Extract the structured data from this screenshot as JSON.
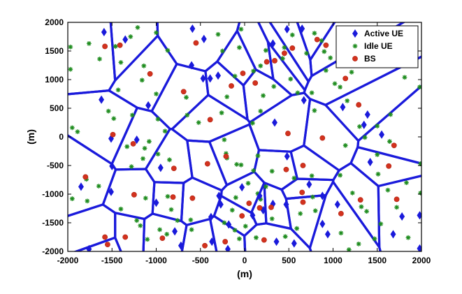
{
  "chart_data": {
    "type": "scatter",
    "title": "",
    "xlabel": "(m)",
    "ylabel": "(m)",
    "xlim": [
      -2000,
      2000
    ],
    "ylim": [
      -2000,
      2000
    ],
    "xticks": [
      -2000,
      -1500,
      -1000,
      -500,
      0,
      500,
      1000,
      1500,
      2000
    ],
    "yticks": [
      -2000,
      -1500,
      -1000,
      -500,
      0,
      500,
      1000,
      1500,
      2000
    ],
    "grid": false,
    "legend_position": "top-right",
    "colors": {
      "cell_edges": "#1a1adb",
      "active_ue": "#1a1adb",
      "idle_ue": "#1e8c1e",
      "bs": "#d2321e"
    },
    "series": [
      {
        "name": "Active UE",
        "marker": "diamond",
        "points": [
          [
            -1590,
            1830
          ],
          [
            -1350,
            1700
          ],
          [
            -600,
            1250
          ],
          [
            -470,
            1020
          ],
          [
            -390,
            1020
          ],
          [
            -300,
            1070
          ],
          [
            -1620,
            650
          ],
          [
            -1090,
            550
          ],
          [
            -1510,
            -30
          ],
          [
            -1220,
            -50
          ],
          [
            -1500,
            -510
          ],
          [
            -1850,
            -870
          ],
          [
            -1510,
            -960
          ],
          [
            -950,
            -540
          ],
          [
            -790,
            -1650
          ],
          [
            -1000,
            -1150
          ],
          [
            -720,
            -1900
          ],
          [
            -1760,
            -1960
          ],
          [
            -290,
            -1030
          ],
          [
            -270,
            -1180
          ],
          [
            -380,
            -1400
          ],
          [
            -180,
            -1530
          ],
          [
            -370,
            -1830
          ],
          [
            -190,
            -1960
          ],
          [
            -30,
            -880
          ],
          [
            90,
            -1370
          ],
          [
            170,
            -1030
          ],
          [
            210,
            -1280
          ],
          [
            320,
            -1170
          ],
          [
            470,
            -1180
          ],
          [
            360,
            -1830
          ],
          [
            480,
            -340
          ],
          [
            730,
            -830
          ],
          [
            880,
            -1030
          ],
          [
            1050,
            -1180
          ],
          [
            880,
            -1520
          ],
          [
            940,
            -1700
          ],
          [
            560,
            -1860
          ],
          [
            340,
            250
          ],
          [
            670,
            640
          ],
          [
            1110,
            520
          ],
          [
            1350,
            210
          ],
          [
            1390,
            390
          ],
          [
            1550,
            40
          ],
          [
            1420,
            -440
          ],
          [
            1680,
            -1700
          ],
          [
            1780,
            -1390
          ],
          [
            1980,
            -1370
          ],
          [
            1980,
            -1950
          ],
          [
            320,
            1630
          ],
          [
            650,
            1890
          ],
          [
            480,
            1880
          ],
          [
            1150,
            1710
          ],
          [
            1110,
            1430
          ],
          [
            1320,
            1560
          ],
          [
            -590,
            1890
          ],
          [
            -460,
            1710
          ]
        ]
      },
      {
        "name": "Idle UE",
        "marker": "asterisk",
        "points": [
          [
            -1970,
            1570
          ],
          [
            -1970,
            1180
          ],
          [
            -1760,
            1630
          ],
          [
            -1640,
            1360
          ],
          [
            -1400,
            1300
          ],
          [
            -1210,
            1910
          ],
          [
            -1000,
            1820
          ],
          [
            -870,
            1510
          ],
          [
            -1140,
            1240
          ],
          [
            -1460,
            1580
          ],
          [
            -1290,
            1750
          ],
          [
            -1160,
            990
          ],
          [
            -1430,
            820
          ],
          [
            -1540,
            450
          ],
          [
            -1480,
            320
          ],
          [
            -1270,
            380
          ],
          [
            -1000,
            750
          ],
          [
            -980,
            310
          ],
          [
            -900,
            100
          ],
          [
            -660,
            690
          ],
          [
            -650,
            380
          ],
          [
            -520,
            250
          ],
          [
            -1950,
            160
          ],
          [
            -1890,
            90
          ],
          [
            -1330,
            -170
          ],
          [
            -1080,
            -80
          ],
          [
            -1150,
            -380
          ],
          [
            -850,
            -400
          ],
          [
            -1280,
            -520
          ],
          [
            -1650,
            -860
          ],
          [
            -1780,
            -1120
          ],
          [
            -1950,
            -1080
          ],
          [
            -1400,
            -1260
          ],
          [
            -1220,
            -1460
          ],
          [
            -1180,
            -1550
          ],
          [
            -960,
            -1620
          ],
          [
            -880,
            -1700
          ],
          [
            -760,
            -1460
          ],
          [
            -610,
            -1450
          ],
          [
            -600,
            -1620
          ],
          [
            -830,
            -1270
          ],
          [
            -870,
            -1040
          ],
          [
            -1120,
            -1070
          ],
          [
            -1100,
            -1790
          ],
          [
            -200,
            -370
          ],
          [
            -100,
            -1060
          ],
          [
            -140,
            -1280
          ],
          [
            -230,
            -1500
          ],
          [
            -110,
            -1630
          ],
          [
            -60,
            -1780
          ],
          [
            10,
            -1560
          ],
          [
            130,
            -1760
          ],
          [
            180,
            -1090
          ],
          [
            150,
            -990
          ],
          [
            -90,
            -480
          ],
          [
            -210,
            -290
          ],
          [
            -230,
            -50
          ],
          [
            -40,
            -490
          ],
          [
            40,
            -810
          ],
          [
            240,
            -870
          ],
          [
            90,
            240
          ],
          [
            180,
            450
          ],
          [
            210,
            720
          ],
          [
            330,
            880
          ],
          [
            520,
            1010
          ],
          [
            600,
            770
          ],
          [
            760,
            770
          ],
          [
            790,
            460
          ],
          [
            1020,
            930
          ],
          [
            1080,
            870
          ],
          [
            1160,
            630
          ],
          [
            1210,
            1130
          ],
          [
            1200,
            1430
          ],
          [
            1100,
            1360
          ],
          [
            970,
            1380
          ],
          [
            920,
            1160
          ],
          [
            900,
            1490
          ],
          [
            700,
            1460
          ],
          [
            540,
            1780
          ],
          [
            450,
            1560
          ],
          [
            240,
            1510
          ],
          [
            180,
            1240
          ],
          [
            100,
            1150
          ],
          [
            -250,
            1500
          ],
          [
            -300,
            1790
          ],
          [
            -110,
            1060
          ],
          [
            -200,
            700
          ],
          [
            -260,
            420
          ],
          [
            150,
            -330
          ],
          [
            100,
            -590
          ],
          [
            310,
            -600
          ],
          [
            560,
            -720
          ],
          [
            760,
            -680
          ],
          [
            1080,
            -670
          ],
          [
            1140,
            -150
          ],
          [
            1360,
            -10
          ],
          [
            1500,
            -310
          ],
          [
            1510,
            -650
          ],
          [
            1220,
            -980
          ],
          [
            1320,
            -1220
          ],
          [
            1380,
            -1300
          ],
          [
            1540,
            -1520
          ],
          [
            1720,
            -1230
          ],
          [
            1620,
            -930
          ],
          [
            1830,
            -800
          ],
          [
            1990,
            -470
          ],
          [
            1990,
            -980
          ],
          [
            1850,
            -1760
          ],
          [
            1470,
            -1780
          ],
          [
            1290,
            -1870
          ],
          [
            1180,
            -1970
          ],
          [
            1090,
            -1680
          ],
          [
            800,
            -1290
          ],
          [
            770,
            -1050
          ],
          [
            630,
            -1340
          ],
          [
            590,
            -1600
          ],
          [
            460,
            -1740
          ],
          [
            310,
            -1430
          ],
          [
            1300,
            180
          ],
          [
            1500,
            190
          ],
          [
            1650,
            390
          ],
          [
            1810,
            1040
          ],
          [
            1980,
            870
          ],
          [
            1750,
            1540
          ],
          [
            1680,
            1280
          ],
          [
            1430,
            1460
          ],
          [
            1410,
            1710
          ],
          [
            1190,
            1850
          ],
          [
            1060,
            1790
          ],
          [
            870,
            1680
          ],
          [
            790,
            1810
          ],
          [
            430,
            1370
          ],
          [
            -1130,
            -200
          ],
          [
            -980,
            -300
          ],
          [
            -1790,
            -740
          ],
          [
            -60,
            1560
          ],
          [
            -40,
            1880
          ],
          [
            1640,
            -80
          ]
        ]
      },
      {
        "name": "BS",
        "marker": "circle",
        "points": [
          [
            -1580,
            1580
          ],
          [
            -1410,
            1600
          ],
          [
            -550,
            1640
          ],
          [
            -1070,
            1100
          ],
          [
            -690,
            790
          ],
          [
            -1490,
            40
          ],
          [
            -1260,
            -120
          ],
          [
            -1800,
            -700
          ],
          [
            -1250,
            -1010
          ],
          [
            -1580,
            -1750
          ],
          [
            -1350,
            -1750
          ],
          [
            -1550,
            -1880
          ],
          [
            -800,
            -550
          ],
          [
            -810,
            -1050
          ],
          [
            -930,
            -1770
          ],
          [
            -450,
            -1900
          ],
          [
            -420,
            -470
          ],
          [
            -590,
            -1070
          ],
          [
            -390,
            300
          ],
          [
            -210,
            -340
          ],
          [
            -220,
            -1830
          ],
          [
            -30,
            -1380
          ],
          [
            50,
            -1160
          ],
          [
            170,
            -1240
          ],
          [
            220,
            -1800
          ],
          [
            300,
            -1230
          ],
          [
            470,
            -570
          ],
          [
            660,
            -1140
          ],
          [
            650,
            -970
          ],
          [
            660,
            -500
          ],
          [
            1090,
            -1340
          ],
          [
            1310,
            -1100
          ],
          [
            1630,
            -510
          ],
          [
            1720,
            -1090
          ],
          [
            1690,
            -150
          ],
          [
            490,
            60
          ],
          [
            880,
            -20
          ],
          [
            1290,
            560
          ],
          [
            1140,
            1020
          ],
          [
            820,
            1700
          ],
          [
            920,
            1600
          ],
          [
            540,
            1550
          ],
          [
            450,
            1460
          ],
          [
            -150,
            890
          ],
          [
            -20,
            1110
          ],
          [
            250,
            1310
          ],
          [
            120,
            940
          ],
          [
            340,
            1330
          ]
        ]
      }
    ],
    "legend": [
      "Active UE",
      "Idle UE",
      "BS"
    ]
  }
}
